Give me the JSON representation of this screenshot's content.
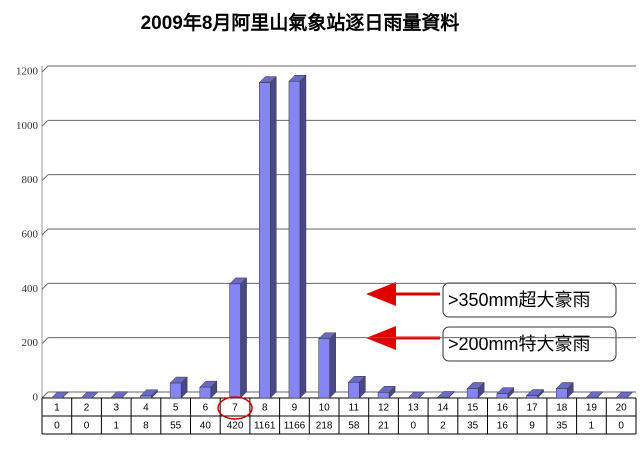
{
  "chart_data": {
    "type": "bar",
    "title": "2009年8月阿里山氣象站逐日雨量資料",
    "categories": [
      "1",
      "2",
      "3",
      "4",
      "5",
      "6",
      "7",
      "8",
      "9",
      "10",
      "11",
      "12",
      "13",
      "14",
      "15",
      "16",
      "17",
      "18",
      "19",
      "20"
    ],
    "values": [
      0,
      0,
      1,
      8,
      55,
      40,
      420,
      1161,
      1166,
      218,
      58,
      21,
      0,
      2,
      35,
      16,
      9,
      35,
      1,
      0
    ],
    "color": "#8585f5",
    "ylim": [
      0,
      1200
    ],
    "yticks": [
      0,
      200,
      400,
      600,
      800,
      1000,
      1200
    ],
    "grid": true,
    "annotations": [
      ">350mm超大豪雨",
      ">200mm特大豪雨"
    ]
  }
}
